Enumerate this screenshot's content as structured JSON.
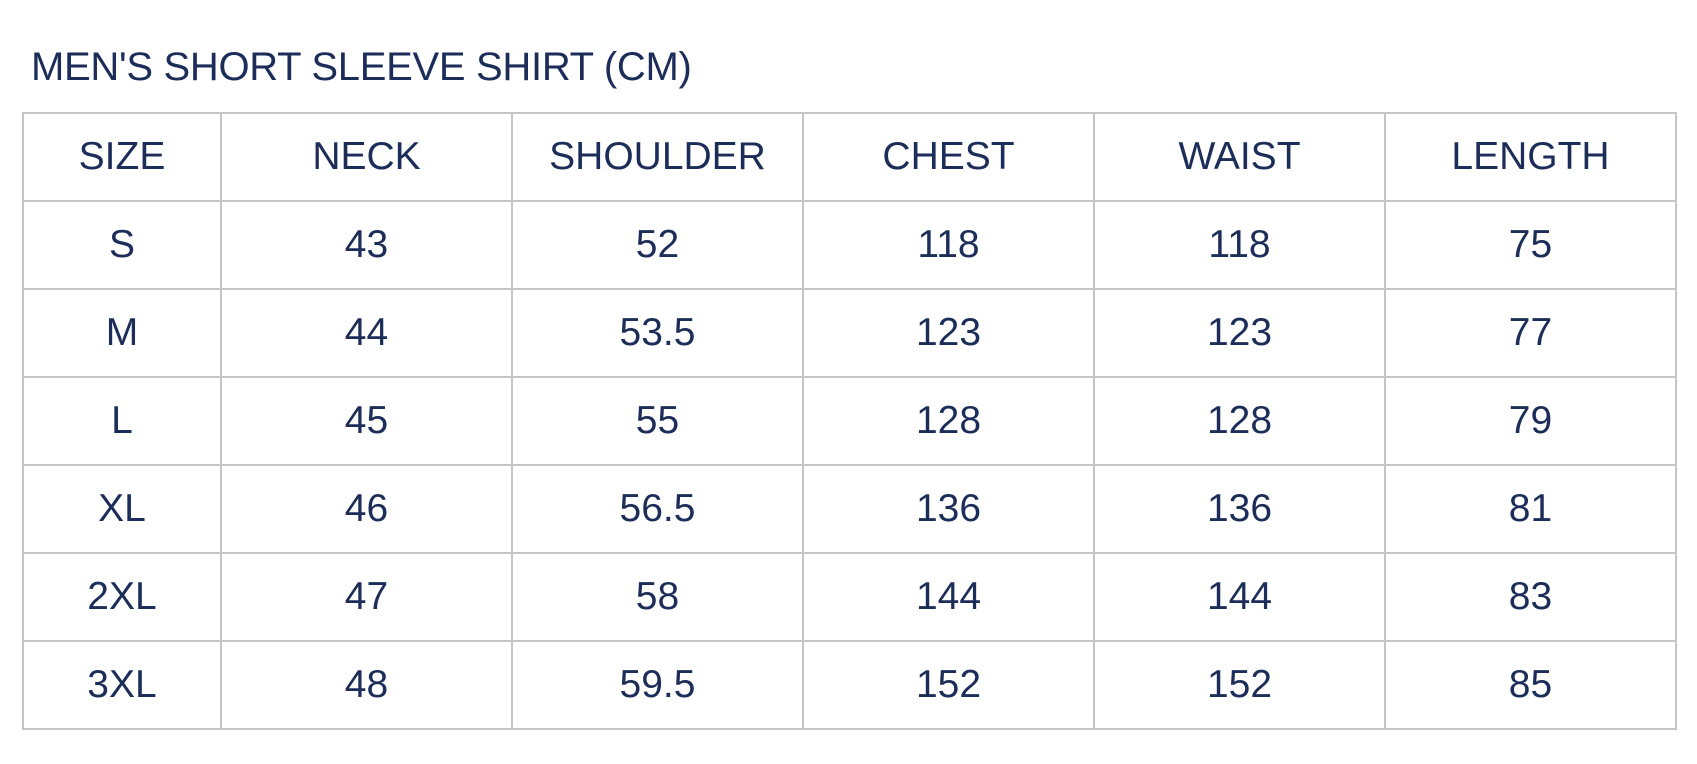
{
  "title": "MEN'S SHORT SLEEVE SHIRT (CM)",
  "headers": [
    "SIZE",
    "NECK",
    "SHOULDER",
    "CHEST",
    "WAIST",
    "LENGTH"
  ],
  "rows": [
    [
      "S",
      "43",
      "52",
      "118",
      "118",
      "75"
    ],
    [
      "M",
      "44",
      "53.5",
      "123",
      "123",
      "77"
    ],
    [
      "L",
      "45",
      "55",
      "128",
      "128",
      "79"
    ],
    [
      "XL",
      "46",
      "56.5",
      "136",
      "136",
      "81"
    ],
    [
      "2XL",
      "47",
      "58",
      "144",
      "144",
      "83"
    ],
    [
      "3XL",
      "48",
      "59.5",
      "152",
      "152",
      "85"
    ]
  ],
  "colors": {
    "text": "#1b2d58",
    "border": "#c4c4c4"
  }
}
